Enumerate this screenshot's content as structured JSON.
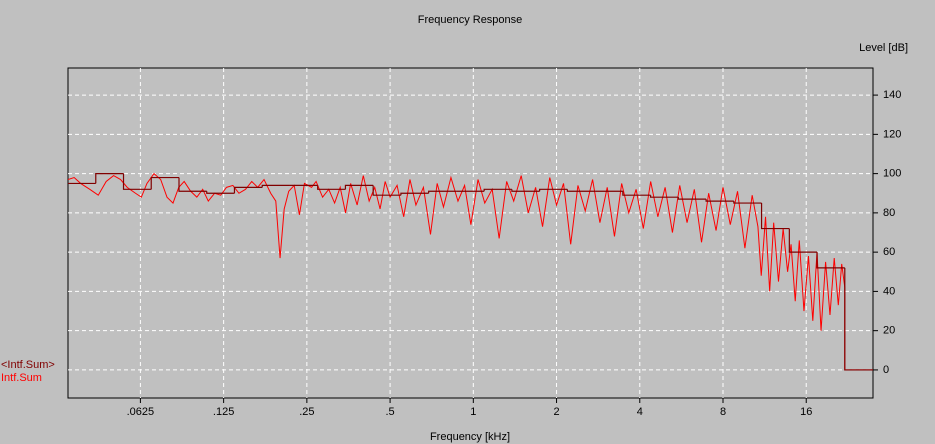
{
  "chart_data": {
    "type": "line",
    "title": "Frequency Response",
    "xlabel": "Frequency [kHz]",
    "ylabel": "Level [dB]",
    "xscale": "log",
    "xlim": [
      0.0342,
      27.9
    ],
    "ylim": [
      -14.3,
      153.8
    ],
    "xticks": [
      {
        "value": 0.0625,
        "label": ".0625"
      },
      {
        "value": 0.125,
        "label": ".125"
      },
      {
        "value": 0.25,
        "label": ".25"
      },
      {
        "value": 0.5,
        "label": ".5"
      },
      1,
      2,
      4,
      8,
      16
    ],
    "yticks": [
      0,
      20,
      40,
      60,
      80,
      100,
      120,
      140
    ],
    "y_axis_side": "right",
    "grid": true,
    "legend": "bottom-left",
    "series": [
      {
        "name": "<Intf.Sum>",
        "color": "#800000",
        "step": "post",
        "x": [
          0.0342,
          0.0431,
          0.0543,
          0.0684,
          0.0862,
          0.1086,
          0.1368,
          0.1724,
          0.2172,
          0.2736,
          0.3447,
          0.4343,
          0.5472,
          0.6894,
          0.8686,
          1.0944,
          1.3788,
          1.7372,
          2.1888,
          2.7576,
          3.4744,
          4.3776,
          5.5153,
          6.9489,
          8.7552,
          11.03,
          13.9,
          17.51,
          22.06
        ],
        "values": [
          95,
          100,
          92,
          98,
          91,
          90,
          93,
          94,
          94,
          92,
          94,
          89,
          90,
          91,
          91,
          92,
          91,
          92,
          91,
          91,
          89,
          88,
          87,
          86,
          85,
          72,
          60,
          52,
          0
        ]
      },
      {
        "name": "Intf.Sum",
        "color": "#ff0000",
        "x": [
          0.0342,
          0.036,
          0.038,
          0.041,
          0.044,
          0.047,
          0.05,
          0.053,
          0.056,
          0.06,
          0.063,
          0.066,
          0.07,
          0.074,
          0.078,
          0.082,
          0.086,
          0.09,
          0.095,
          0.1,
          0.105,
          0.11,
          0.116,
          0.122,
          0.128,
          0.135,
          0.142,
          0.15,
          0.158,
          0.166,
          0.175,
          0.185,
          0.193,
          0.2,
          0.207,
          0.215,
          0.225,
          0.235,
          0.245,
          0.26,
          0.27,
          0.285,
          0.3,
          0.315,
          0.33,
          0.345,
          0.36,
          0.38,
          0.4,
          0.42,
          0.44,
          0.46,
          0.48,
          0.5,
          0.53,
          0.56,
          0.59,
          0.62,
          0.66,
          0.7,
          0.74,
          0.78,
          0.83,
          0.88,
          0.93,
          0.98,
          1.04,
          1.1,
          1.17,
          1.24,
          1.32,
          1.4,
          1.49,
          1.58,
          1.68,
          1.78,
          1.89,
          2.0,
          2.12,
          2.25,
          2.39,
          2.54,
          2.7,
          2.87,
          3.05,
          3.24,
          3.44,
          3.65,
          3.88,
          4.12,
          4.38,
          4.65,
          4.94,
          5.25,
          5.58,
          5.93,
          6.3,
          6.69,
          7.1,
          7.55,
          8.0,
          8.5,
          9.03,
          9.6,
          10.2,
          10.7,
          11.0,
          11.4,
          11.8,
          12.2,
          12.7,
          13.2,
          13.7,
          14.1,
          14.6,
          15.1,
          15.7,
          16.3,
          16.9,
          17.5,
          18.1,
          18.8,
          19.5,
          20.2,
          20.9,
          21.5,
          22.06,
          22.06,
          27.9
        ],
        "values": [
          97,
          98,
          95,
          92,
          89,
          96,
          99,
          97,
          93,
          90,
          88,
          95,
          100,
          97,
          88,
          85,
          93,
          96,
          91,
          88,
          92,
          86,
          90,
          89,
          93,
          94,
          90,
          92,
          96,
          93,
          97,
          90,
          86,
          57,
          82,
          91,
          94,
          79,
          95,
          93,
          96,
          88,
          92,
          85,
          93,
          80,
          95,
          84,
          99,
          86,
          93,
          82,
          96,
          88,
          94,
          78,
          97,
          84,
          93,
          69,
          95,
          83,
          98,
          86,
          94,
          74,
          97,
          85,
          92,
          67,
          96,
          86,
          99,
          80,
          93,
          73,
          98,
          84,
          95,
          64,
          94,
          81,
          97,
          75,
          93,
          68,
          95,
          80,
          92,
          72,
          96,
          78,
          93,
          70,
          94,
          75,
          92,
          65,
          90,
          71,
          93,
          74,
          91,
          62,
          89,
          73,
          48,
          78,
          40,
          75,
          45,
          72,
          50,
          64,
          35,
          66,
          30,
          58,
          25,
          60,
          20,
          55,
          28,
          57,
          33,
          54,
          42,
          0,
          0
        ]
      }
    ]
  }
}
